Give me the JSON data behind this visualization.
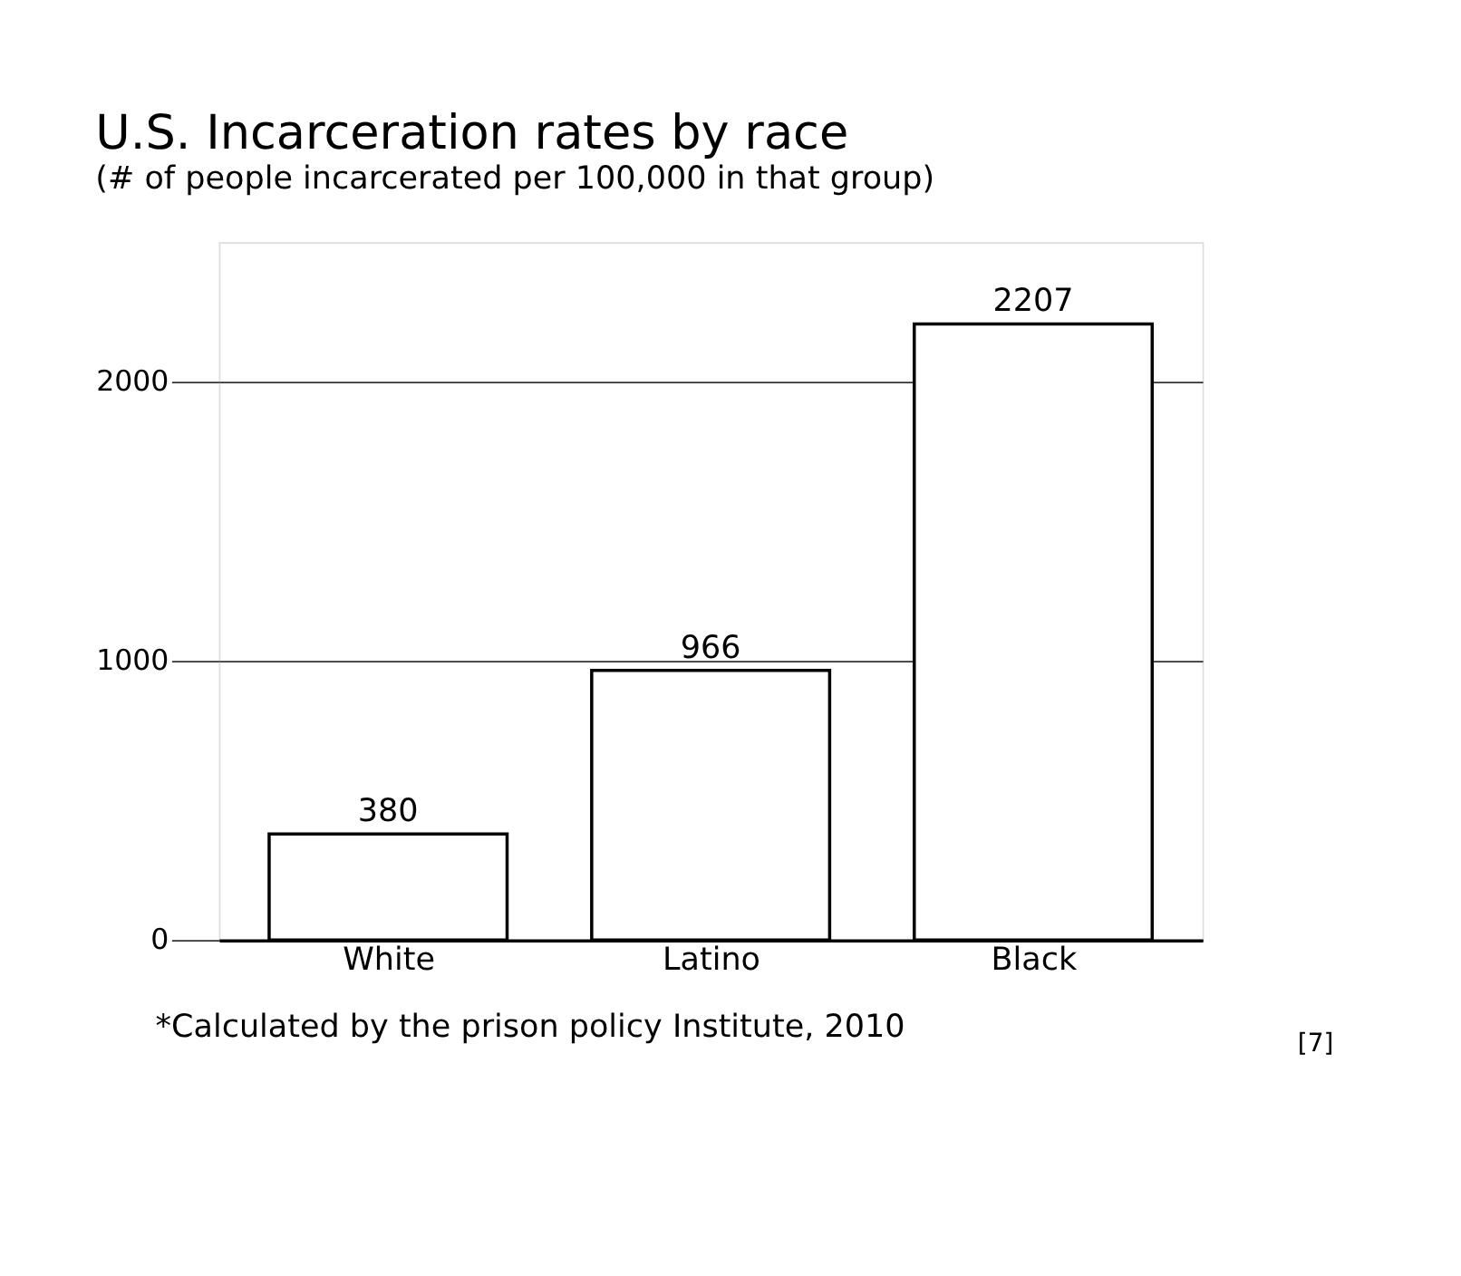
{
  "chart_data": {
    "type": "bar",
    "title": "U.S. Incarceration rates by race",
    "subtitle": "(# of people incarcerated per 100,000 in that group)",
    "categories": [
      "White",
      "Latino",
      "Black"
    ],
    "values": [
      380,
      966,
      2207
    ],
    "color": "#ffffff",
    "data_labels": true,
    "ylim": [
      0,
      2500
    ],
    "yticks": [
      0,
      1000,
      2000
    ],
    "grid": "y",
    "annotations": [
      "*Calculated by the prison policy Institute, 2010",
      "[7]"
    ]
  }
}
